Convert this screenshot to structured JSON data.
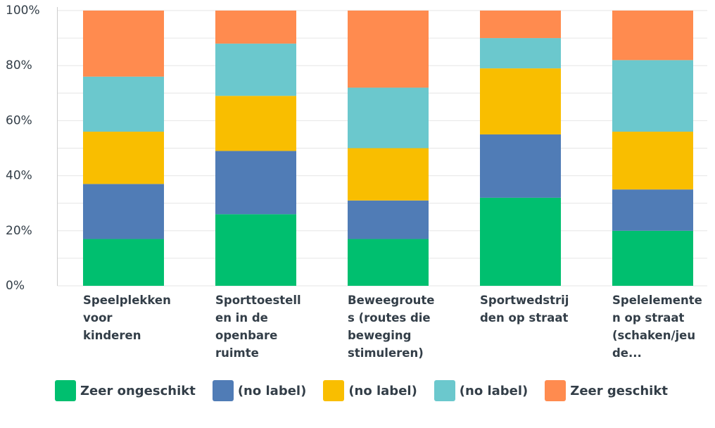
{
  "chart_data": {
    "type": "stacked_bar",
    "categories": [
      "Speelplekken voor kinderen",
      "Sporttoestellen in de openbare ruimte",
      "Beweegroutes (routes die beweging stimuleren)",
      "Sportwedstrijden op straat",
      "Spelelementen op straat (schaken/jeu de..."
    ],
    "series": [
      {
        "name": "Zeer ongeschikt",
        "color": "#00bf6f",
        "values": [
          17,
          26,
          17,
          32,
          20
        ]
      },
      {
        "name": "(no label)",
        "color": "#507cb6",
        "values": [
          20,
          23,
          14,
          23,
          15
        ]
      },
      {
        "name": "(no label)",
        "color": "#f9be00",
        "values": [
          19,
          20,
          19,
          24,
          21
        ]
      },
      {
        "name": "(no label)",
        "color": "#6bc8cd",
        "values": [
          20,
          19,
          22,
          11,
          26
        ]
      },
      {
        "name": "Zeer geschikt",
        "color": "#ff8b4f",
        "values": [
          24,
          12,
          28,
          10,
          18
        ]
      }
    ],
    "ylim": [
      0,
      100
    ],
    "yticks": [
      {
        "value": 0,
        "label": "0%"
      },
      {
        "value": 20,
        "label": "20%"
      },
      {
        "value": 40,
        "label": "40%"
      },
      {
        "value": 60,
        "label": "60%"
      },
      {
        "value": 80,
        "label": "80%"
      },
      {
        "value": 100,
        "label": "100%"
      }
    ],
    "minor_yticks": [
      10,
      30,
      50,
      70,
      90
    ],
    "grid": true
  }
}
